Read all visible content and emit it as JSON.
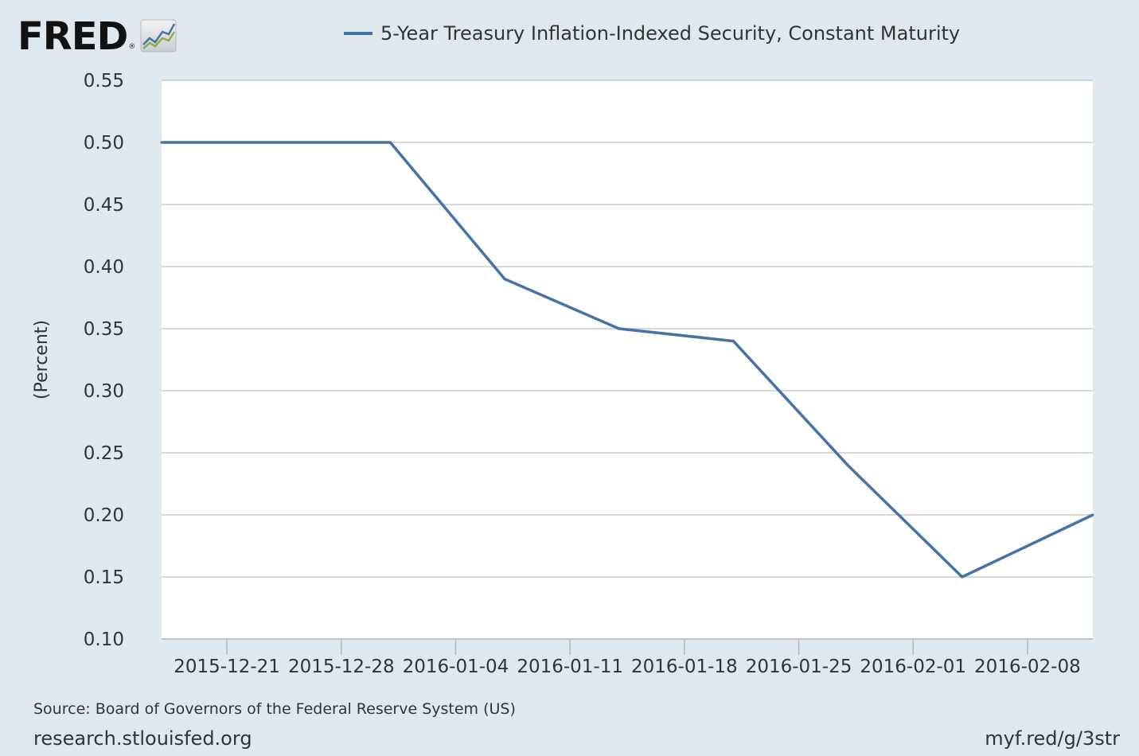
{
  "header": {
    "logo_text": "FRED",
    "logo_mark": "®",
    "legend_label": "5-Year Treasury Inflation-Indexed Security, Constant Maturity"
  },
  "footer": {
    "source": "Source: Board of Governors of the Federal Reserve System (US)",
    "site": "research.stlouisfed.org",
    "shortlink": "myf.red/g/3str"
  },
  "colors": {
    "series": "#4572a7",
    "plot_bg": "#ffffff",
    "page_bg": "#e1e9f0",
    "grid": "#c0c0c0"
  },
  "chart_data": {
    "type": "line",
    "title": "",
    "xlabel": "",
    "ylabel": "(Percent)",
    "x_ticks": [
      "2015-12-21",
      "2015-12-28",
      "2016-01-04",
      "2016-01-11",
      "2016-01-18",
      "2016-01-25",
      "2016-02-01",
      "2016-02-08"
    ],
    "x_range": [
      "2015-12-17",
      "2016-02-12"
    ],
    "y_ticks": [
      "0.10",
      "0.15",
      "0.20",
      "0.25",
      "0.30",
      "0.35",
      "0.40",
      "0.45",
      "0.50",
      "0.55"
    ],
    "ylim": [
      0.1,
      0.55
    ],
    "grid": true,
    "legend": "top",
    "series": [
      {
        "name": "5-Year Treasury Inflation-Indexed Security, Constant Maturity",
        "x": [
          "2015-12-17",
          "2015-12-24",
          "2015-12-31",
          "2016-01-07",
          "2016-01-14",
          "2016-01-21",
          "2016-01-28",
          "2016-02-04",
          "2016-02-12"
        ],
        "values": [
          0.5,
          0.5,
          0.5,
          0.39,
          0.35,
          0.34,
          0.24,
          0.15,
          0.2
        ]
      }
    ]
  }
}
